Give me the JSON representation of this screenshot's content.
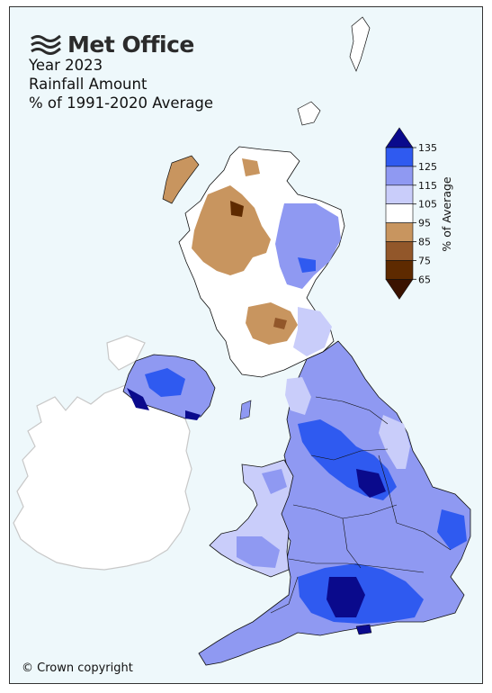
{
  "brand": {
    "name": "Met Office",
    "logo_icon": "met-office-wave-logo-icon",
    "logo_color": "#2b2b2b"
  },
  "title": "Year 2023",
  "subtitle": "Rainfall Amount",
  "subtitle2": "% of 1991-2020 Average",
  "copyright": "© Crown copyright",
  "colorbar": {
    "label": "% of Average",
    "ticks": [
      "135",
      "125",
      "115",
      "105",
      "95",
      "85",
      "75",
      "65"
    ],
    "bins": [
      {
        "range": ">135",
        "color": "#0a0a8c"
      },
      {
        "range": "125-135",
        "color": "#2f5af0"
      },
      {
        "range": "115-125",
        "color": "#8f99f2"
      },
      {
        "range": "105-115",
        "color": "#c9cdfa"
      },
      {
        "range": "95-105",
        "color": "#ffffff"
      },
      {
        "range": "85-95",
        "color": "#c8955f"
      },
      {
        "range": "75-85",
        "color": "#92572a"
      },
      {
        "range": "65-75",
        "color": "#5e2a00"
      },
      {
        "range": "<65",
        "color": "#3a1200"
      }
    ]
  },
  "map": {
    "sea_color": "#eef8fb",
    "ireland_color": "#ffffff",
    "ireland_outline": "#c8c8c8",
    "region_outline": "#111111"
  }
}
